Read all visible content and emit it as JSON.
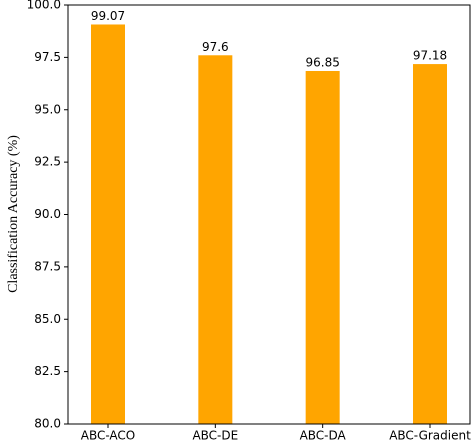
{
  "chart_data": {
    "type": "bar",
    "y_label": "Classification Accuracy (%)",
    "categories": [
      "ABC-ACO",
      "ABC-DE",
      "ABC-DA",
      "ABC-Gradient"
    ],
    "values": [
      99.07,
      97.6,
      96.85,
      97.18
    ],
    "color": "#ffa500",
    "ylim": [
      80,
      100
    ],
    "yticks": [
      {
        "value": 80,
        "label": "80.0"
      },
      82.5,
      {
        "value": 85,
        "label": "85.0"
      },
      87.5,
      {
        "value": 90,
        "label": "90.0"
      },
      92.5,
      {
        "value": 95,
        "label": "95.0"
      },
      97.5,
      {
        "value": 100,
        "label": "100.0"
      }
    ],
    "grid": false
  }
}
